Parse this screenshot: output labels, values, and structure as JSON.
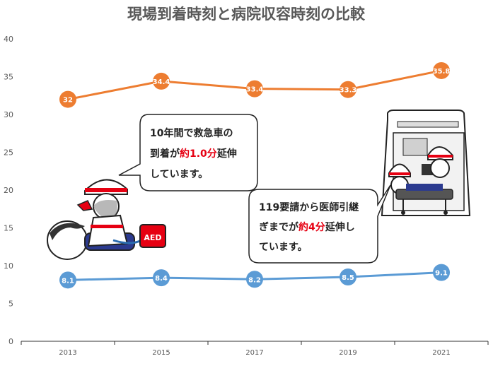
{
  "chart_data": {
    "type": "line",
    "title": "現場到着時刻と病院収容時刻の比較",
    "categories": [
      "2013",
      "2015",
      "2017",
      "2019",
      "2021"
    ],
    "ylim": [
      0,
      40
    ],
    "yticks": [
      "0",
      "5",
      "10",
      "15",
      "20",
      "25",
      "30",
      "35",
      "40"
    ],
    "grid": false,
    "series": [
      {
        "color": "#ed7d31",
        "values": [
          32,
          34.4,
          33.4,
          33.3,
          35.8
        ],
        "labels": [
          "32",
          "34.4",
          "33.4",
          "33.3",
          "35.8"
        ]
      },
      {
        "color": "#5b9bd5",
        "values": [
          8.1,
          8.4,
          8.2,
          8.5,
          9.1
        ],
        "labels": [
          "8.1",
          "8.4",
          "8.2",
          "8.5",
          "9.1"
        ]
      }
    ],
    "annotations": [
      {
        "lines": [
          [
            {
              "t": "10年間で救急車の",
              "hl": false
            }
          ],
          [
            {
              "t": "到着が",
              "hl": false
            },
            {
              "t": "約1.0分",
              "hl": true
            },
            {
              "t": "延伸",
              "hl": false
            }
          ],
          [
            {
              "t": "しています。",
              "hl": false
            }
          ]
        ]
      },
      {
        "lines": [
          [
            {
              "t": "119要請から医師引継",
              "hl": false
            }
          ],
          [
            {
              "t": "ぎまでが",
              "hl": false
            },
            {
              "t": "約4分",
              "hl": true
            },
            {
              "t": "延伸し",
              "hl": false
            }
          ],
          [
            {
              "t": "ています。",
              "hl": false
            }
          ]
        ]
      }
    ],
    "aed_label": "AED"
  }
}
